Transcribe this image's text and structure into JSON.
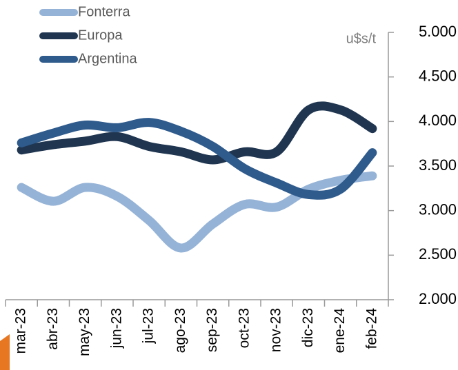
{
  "chart_data": {
    "type": "line",
    "y_axis_label": "u$s/t",
    "categories": [
      "mar-23",
      "abr-23",
      "may-23",
      "jun-23",
      "jul-23",
      "ago-23",
      "sep-23",
      "oct-23",
      "nov-23",
      "dic-23",
      "ene-24",
      "feb-24"
    ],
    "series": [
      {
        "name": "Fonterra",
        "color": "#95b3d7",
        "values": [
          3260,
          3105,
          3260,
          3160,
          2890,
          2580,
          2850,
          3070,
          3040,
          3240,
          3340,
          3390
        ]
      },
      {
        "name": "Europa",
        "color": "#1f3550",
        "values": [
          3680,
          3740,
          3780,
          3830,
          3720,
          3660,
          3570,
          3660,
          3660,
          4130,
          4130,
          3920
        ]
      },
      {
        "name": "Argentina",
        "color": "#2e5a8c",
        "values": [
          3760,
          3870,
          3960,
          3930,
          3990,
          3890,
          3720,
          3470,
          3310,
          3180,
          3240,
          3650
        ]
      }
    ],
    "ylim": [
      2000,
      5000
    ],
    "yticks": [
      {
        "value": 2000,
        "label": "2.000"
      },
      {
        "value": 2500,
        "label": "2.500"
      },
      {
        "value": 3000,
        "label": "3.000"
      },
      {
        "value": 3500,
        "label": "3.500"
      },
      {
        "value": 4000,
        "label": "4.000"
      },
      {
        "value": 4500,
        "label": "4.500"
      },
      {
        "value": 5000,
        "label": "5.000"
      }
    ],
    "y_axis_side": "right",
    "legend": "top-left",
    "grid": false
  }
}
